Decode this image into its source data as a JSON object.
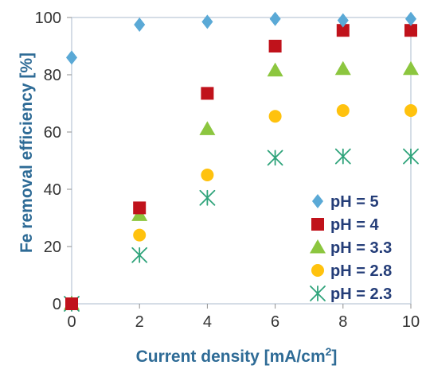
{
  "chart_data": {
    "type": "scatter",
    "title": "",
    "xlabel": "Current density [mA/cm",
    "xlabel_sup": "2",
    "xlabel_tail": "]",
    "ylabel": "Fe removal efficiency [%]",
    "xlim": [
      0,
      10
    ],
    "ylim": [
      0,
      100
    ],
    "xticks": [
      "0",
      "2",
      "4",
      "6",
      "8",
      "10"
    ],
    "yticks": [
      "0",
      "20",
      "40",
      "60",
      "80",
      "100"
    ],
    "grid": false,
    "legend_position": "bottom-right",
    "series": [
      {
        "name": "pH = 5",
        "marker": "diamond",
        "color": "#5aa9d6",
        "points": [
          [
            0,
            86
          ],
          [
            2,
            97.5
          ],
          [
            4,
            98.5
          ],
          [
            6,
            99.5
          ],
          [
            8,
            99
          ],
          [
            10,
            99.5
          ]
        ]
      },
      {
        "name": "pH = 4",
        "marker": "square",
        "color": "#c0121b",
        "points": [
          [
            0,
            0
          ],
          [
            2,
            33.5
          ],
          [
            4,
            73.5
          ],
          [
            6,
            90
          ],
          [
            8,
            95.5
          ],
          [
            10,
            95.5
          ]
        ]
      },
      {
        "name": "pH = 3.3",
        "marker": "triangle",
        "color": "#8cc63f",
        "points": [
          [
            0,
            0
          ],
          [
            2,
            31
          ],
          [
            4,
            61
          ],
          [
            6,
            81.5
          ],
          [
            8,
            82
          ],
          [
            10,
            82
          ]
        ]
      },
      {
        "name": "pH = 2.8",
        "marker": "circle",
        "color": "#ffc20e",
        "points": [
          [
            0,
            0
          ],
          [
            2,
            24
          ],
          [
            4,
            45
          ],
          [
            6,
            65.5
          ],
          [
            8,
            67.5
          ],
          [
            10,
            67.5
          ]
        ]
      },
      {
        "name": "pH = 2.3",
        "marker": "asterisk",
        "color": "#2ea37a",
        "points": [
          [
            0,
            0
          ],
          [
            2,
            17
          ],
          [
            4,
            37
          ],
          [
            6,
            51
          ],
          [
            8,
            51.5
          ],
          [
            10,
            51.5
          ]
        ]
      }
    ]
  }
}
